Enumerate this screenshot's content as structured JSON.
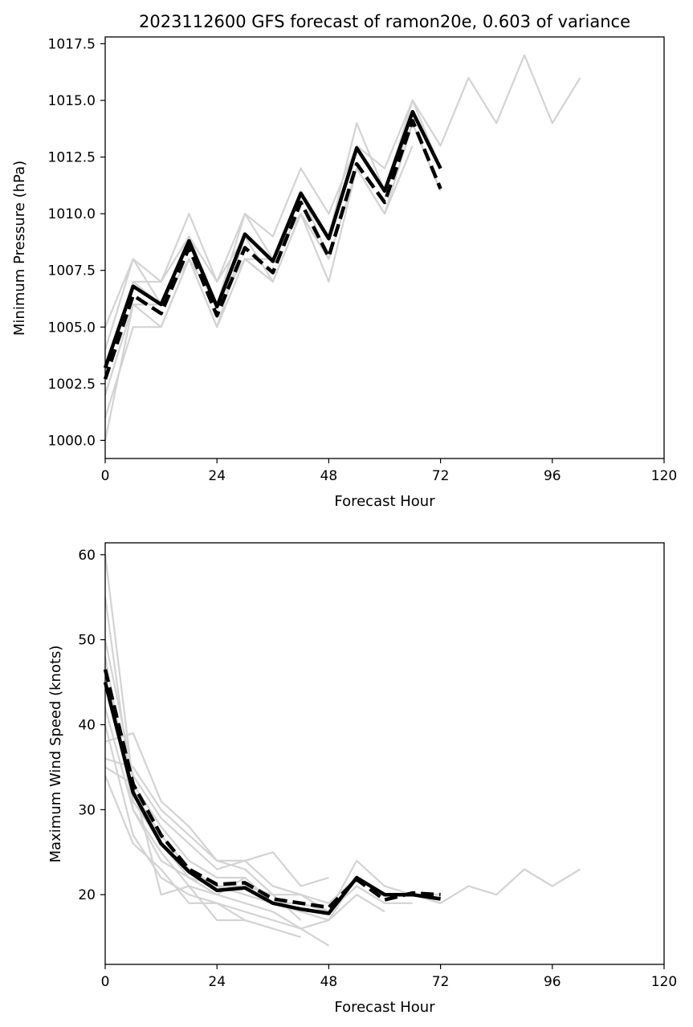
{
  "colors": {
    "ensemble": "#d3d3d3",
    "highlight": "#000000",
    "background": "#ffffff"
  },
  "chart_data": [
    {
      "type": "line",
      "title": "2023112600 GFS forecast of ramon20e, 0.603 of variance",
      "xlabel": "Forecast Hour",
      "ylabel": "Minimum Pressure (hPa)",
      "xlim": [
        0,
        120
      ],
      "ylim": [
        999.2,
        1017.8
      ],
      "xticks": [
        0,
        24,
        48,
        72,
        96,
        120
      ],
      "yticks": [
        1000.0,
        1002.5,
        1005.0,
        1007.5,
        1010.0,
        1012.5,
        1015.0,
        1017.5
      ],
      "ytick_labels": [
        "1000.0",
        "1002.5",
        "1005.0",
        "1007.5",
        "1010.0",
        "1012.5",
        "1015.0",
        "1017.5"
      ],
      "grid": false,
      "ensemble_members": [
        {
          "x": [
            0,
            6,
            12,
            18,
            24,
            30,
            36,
            42,
            48,
            54,
            60,
            66,
            72,
            78,
            84,
            90,
            96,
            102
          ],
          "y": [
            1005,
            1008,
            1007,
            1010,
            1007,
            1010,
            1009,
            1012,
            1010,
            1013,
            1012,
            1015,
            1013,
            1016,
            1014,
            1017,
            1014,
            1016
          ]
        },
        {
          "x": [
            0,
            6,
            12,
            18,
            24,
            30,
            36,
            42,
            48,
            54,
            60,
            66,
            72
          ],
          "y": [
            1004,
            1008,
            1006,
            1009,
            1006,
            1010,
            1008,
            1011,
            1009,
            1014,
            1011,
            1015,
            1012
          ]
        },
        {
          "x": [
            0,
            6,
            12,
            18,
            24,
            30,
            36,
            42,
            48,
            54,
            60,
            66,
            72
          ],
          "y": [
            1003,
            1007,
            1006,
            1009,
            1006,
            1009,
            1008,
            1011,
            1009,
            1013,
            1011,
            1014,
            1011
          ]
        },
        {
          "x": [
            0,
            6,
            12,
            18,
            24,
            30,
            36,
            42,
            48,
            54,
            60,
            66,
            72
          ],
          "y": [
            1002,
            1006,
            1005,
            1008,
            1005,
            1009,
            1007,
            1010,
            1008,
            1012,
            1010,
            1014,
            1011
          ]
        },
        {
          "x": [
            0,
            6,
            12,
            18,
            24,
            30,
            36,
            42,
            48,
            54,
            60,
            66
          ],
          "y": [
            1001,
            1005,
            1005,
            1008,
            1005,
            1008,
            1007,
            1010,
            1007,
            1012,
            1010,
            1013
          ]
        },
        {
          "x": [
            0,
            6,
            12,
            18,
            24,
            30,
            36,
            42,
            48
          ],
          "y": [
            1000,
            1006,
            1006,
            1008,
            1006,
            1008,
            1008,
            1011,
            1008
          ]
        },
        {
          "x": [
            0,
            6,
            12,
            18,
            24,
            30,
            36,
            42,
            48
          ],
          "y": [
            1003,
            1007,
            1007,
            1009,
            1007,
            1009,
            1008,
            1010,
            1008
          ]
        },
        {
          "x": [
            0,
            6,
            12,
            18,
            24,
            30,
            36
          ],
          "y": [
            1002,
            1006,
            1006,
            1008,
            1006,
            1008,
            1007
          ]
        }
      ],
      "solid_series": {
        "x": [
          0,
          6,
          12,
          18,
          24,
          30,
          36,
          42,
          48,
          54,
          60,
          66,
          72
        ],
        "y": [
          1003.2,
          1006.8,
          1006.0,
          1008.8,
          1005.9,
          1009.1,
          1007.9,
          1010.9,
          1008.9,
          1012.9,
          1011.0,
          1014.5,
          1012.0
        ]
      },
      "dashed_series": {
        "x": [
          0,
          6,
          12,
          18,
          24,
          30,
          36,
          42,
          48,
          54,
          60,
          66,
          72
        ],
        "y": [
          1002.7,
          1006.4,
          1005.6,
          1008.5,
          1005.5,
          1008.5,
          1007.4,
          1010.5,
          1008.1,
          1012.2,
          1010.5,
          1014.1,
          1011.1
        ]
      }
    },
    {
      "type": "line",
      "title": "",
      "xlabel": "Forecast Hour",
      "ylabel": "Maximum Wind Speed (knots)",
      "xlim": [
        0,
        120
      ],
      "ylim": [
        11.8,
        61.4
      ],
      "xticks": [
        0,
        24,
        48,
        72,
        96,
        120
      ],
      "yticks": [
        20,
        30,
        40,
        50,
        60
      ],
      "ytick_labels": [
        "20",
        "30",
        "40",
        "50",
        "60"
      ],
      "grid": false,
      "ensemble_members": [
        {
          "x": [
            0,
            6,
            12,
            18,
            24,
            30,
            36,
            42,
            48,
            54,
            60,
            66,
            72,
            78,
            84,
            90,
            96,
            102
          ],
          "y": [
            45,
            32,
            27,
            23,
            21,
            21,
            20,
            20,
            19,
            22,
            20,
            20,
            19,
            21,
            20,
            23,
            21,
            23
          ]
        },
        {
          "x": [
            0,
            6,
            12,
            18,
            24,
            30,
            36,
            42,
            48,
            54,
            60,
            66,
            72
          ],
          "y": [
            60,
            33,
            28,
            24,
            22,
            22,
            19,
            18,
            17,
            22,
            20,
            20,
            19
          ]
        },
        {
          "x": [
            0,
            6,
            12,
            18,
            24,
            30,
            36,
            42,
            48,
            54,
            60,
            66,
            72
          ],
          "y": [
            55,
            31,
            26,
            22,
            21,
            20,
            19,
            19,
            18,
            24,
            21,
            20,
            20
          ]
        },
        {
          "x": [
            0,
            6,
            12,
            18,
            24,
            30,
            36,
            42,
            48,
            54,
            60,
            66
          ],
          "y": [
            50,
            34,
            29,
            26,
            23,
            24,
            21,
            20,
            18,
            21,
            19,
            19
          ]
        },
        {
          "x": [
            0,
            6,
            12,
            18,
            24,
            30,
            36,
            42,
            48,
            54,
            60
          ],
          "y": [
            42,
            30,
            25,
            21,
            20,
            19,
            18,
            16,
            17,
            20,
            18
          ]
        },
        {
          "x": [
            0,
            6,
            12,
            18,
            24,
            30,
            36,
            42,
            48
          ],
          "y": [
            40,
            27,
            22,
            20,
            19,
            18,
            17,
            16,
            14
          ]
        },
        {
          "x": [
            0,
            6,
            12,
            18,
            24,
            30,
            36,
            42,
            48
          ],
          "y": [
            36,
            35,
            30,
            27,
            24,
            24,
            25,
            21,
            22
          ]
        },
        {
          "x": [
            0,
            6,
            12,
            18,
            24,
            30,
            36,
            42
          ],
          "y": [
            38,
            39,
            31,
            28,
            24,
            23,
            20,
            17
          ]
        },
        {
          "x": [
            0,
            6,
            12,
            18,
            24,
            30,
            36,
            42
          ],
          "y": [
            35,
            33,
            20,
            21,
            17,
            17,
            16,
            15
          ]
        },
        {
          "x": [
            0,
            6,
            12,
            18,
            24,
            30,
            36
          ],
          "y": [
            34,
            26,
            23,
            19,
            19,
            17,
            16
          ]
        },
        {
          "x": [
            0,
            6,
            12,
            18,
            24,
            30,
            36
          ],
          "y": [
            48,
            30,
            24,
            22,
            20,
            22,
            19
          ]
        }
      ],
      "solid_series": {
        "x": [
          0,
          6,
          12,
          18,
          24,
          30,
          36,
          42,
          48,
          54,
          60,
          66,
          72
        ],
        "y": [
          45.0,
          32.0,
          26.0,
          22.7,
          20.5,
          20.8,
          19.0,
          18.3,
          17.8,
          22.0,
          20.0,
          20.0,
          19.5
        ]
      },
      "dashed_series": {
        "x": [
          0,
          6,
          12,
          18,
          24,
          30,
          36,
          42,
          48,
          54,
          60,
          66,
          72
        ],
        "y": [
          46.5,
          33.0,
          27.0,
          23.0,
          21.2,
          21.4,
          19.5,
          19.0,
          18.5,
          21.8,
          19.4,
          20.2,
          20.0
        ]
      }
    }
  ]
}
